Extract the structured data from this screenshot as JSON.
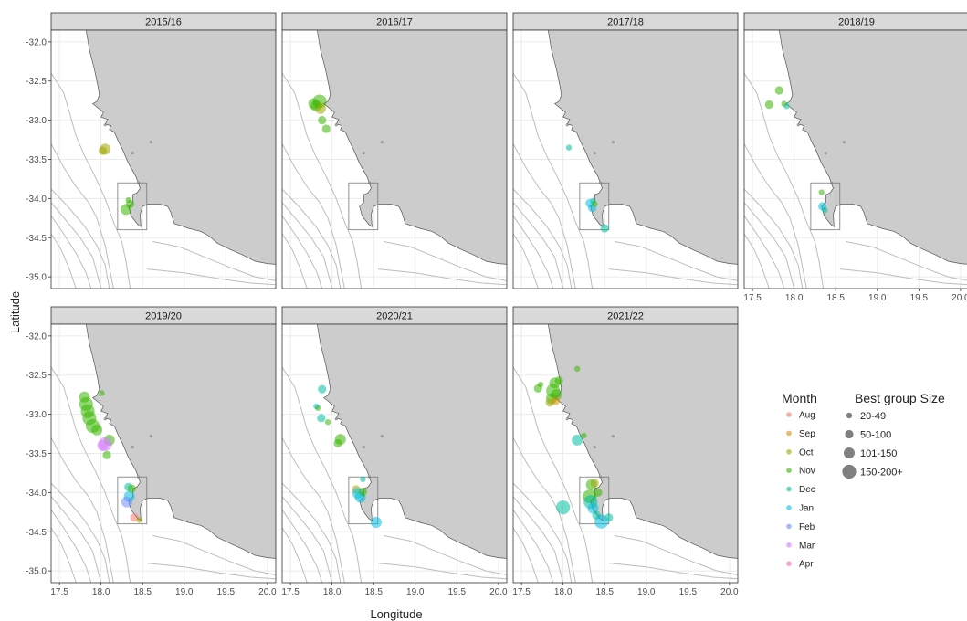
{
  "chart_data": {
    "type": "scatter",
    "xlabel": "Longitude",
    "ylabel": "Latitude",
    "xlim": [
      17.4,
      20.1
    ],
    "ylim": [
      -35.15,
      -31.85
    ],
    "x_ticks": [
      17.5,
      18.0,
      18.5,
      19.0,
      19.5,
      20.0
    ],
    "x_tick_labels": [
      "17.5",
      "18.0",
      "18.5",
      "19.0",
      "19.5",
      "20.0"
    ],
    "y_ticks": [
      -32.0,
      -32.5,
      -33.0,
      -33.5,
      -34.0,
      -34.5,
      -35.0
    ],
    "y_tick_labels": [
      "-32.0",
      "-32.5",
      "-33.0",
      "-33.5",
      "-34.0",
      "-34.5",
      "-35.0"
    ],
    "grid": true,
    "colors": {
      "Aug": "#F8766D",
      "Sep": "#D89000",
      "Oct": "#A3A500",
      "Nov": "#39B600",
      "Dec": "#00BFA0",
      "Jan": "#00BFE0",
      "Feb": "#6B8CFF",
      "Mar": "#D77CFF",
      "Apr": "#F669B7",
      "land": "#cccccc",
      "strip": "#d9d9d9",
      "contour": "#bdbdbd"
    },
    "panels": [
      {
        "title": "2015/16",
        "points": [
          {
            "lon": 18.05,
            "lat": -33.37,
            "month": "Oct",
            "size": 3
          },
          {
            "lon": 18.02,
            "lat": -33.39,
            "month": "Oct",
            "size": 2
          },
          {
            "lon": 18.33,
            "lat": -34.02,
            "month": "Nov",
            "size": 1
          },
          {
            "lon": 18.3,
            "lat": -34.14,
            "month": "Nov",
            "size": 3
          },
          {
            "lon": 18.35,
            "lat": -34.07,
            "month": "Nov",
            "size": 2
          }
        ]
      },
      {
        "title": "2016/17",
        "points": [
          {
            "lon": 17.85,
            "lat": -32.76,
            "month": "Nov",
            "size": 4
          },
          {
            "lon": 17.81,
            "lat": -32.82,
            "month": "Nov",
            "size": 3
          },
          {
            "lon": 17.86,
            "lat": -32.85,
            "month": "Oct",
            "size": 3
          },
          {
            "lon": 17.78,
            "lat": -32.79,
            "month": "Nov",
            "size": 3
          },
          {
            "lon": 17.88,
            "lat": -33.0,
            "month": "Nov",
            "size": 2
          },
          {
            "lon": 17.93,
            "lat": -33.11,
            "month": "Nov",
            "size": 2
          }
        ]
      },
      {
        "title": "2017/18",
        "points": [
          {
            "lon": 18.07,
            "lat": -33.35,
            "month": "Dec",
            "size": 1
          },
          {
            "lon": 18.32,
            "lat": -34.06,
            "month": "Jan",
            "size": 2
          },
          {
            "lon": 18.35,
            "lat": -34.12,
            "month": "Jan",
            "size": 2
          },
          {
            "lon": 18.36,
            "lat": -34.03,
            "month": "Dec",
            "size": 1
          },
          {
            "lon": 18.38,
            "lat": -34.07,
            "month": "Nov",
            "size": 1
          },
          {
            "lon": 18.5,
            "lat": -34.38,
            "month": "Dec",
            "size": 2
          }
        ]
      },
      {
        "title": "2018/19",
        "points": [
          {
            "lon": 17.82,
            "lat": -32.62,
            "month": "Nov",
            "size": 2
          },
          {
            "lon": 17.7,
            "lat": -32.8,
            "month": "Nov",
            "size": 2
          },
          {
            "lon": 17.88,
            "lat": -32.79,
            "month": "Nov",
            "size": 1
          },
          {
            "lon": 17.91,
            "lat": -32.82,
            "month": "Dec",
            "size": 1
          },
          {
            "lon": 18.33,
            "lat": -33.92,
            "month": "Nov",
            "size": 1
          },
          {
            "lon": 18.34,
            "lat": -34.1,
            "month": "Jan",
            "size": 2
          },
          {
            "lon": 18.37,
            "lat": -34.15,
            "month": "Dec",
            "size": 1
          }
        ]
      },
      {
        "title": "2019/20",
        "points": [
          {
            "lon": 17.82,
            "lat": -32.87,
            "month": "Nov",
            "size": 4
          },
          {
            "lon": 17.84,
            "lat": -32.96,
            "month": "Nov",
            "size": 4
          },
          {
            "lon": 17.86,
            "lat": -33.05,
            "month": "Nov",
            "size": 4
          },
          {
            "lon": 17.9,
            "lat": -33.15,
            "month": "Nov",
            "size": 4
          },
          {
            "lon": 17.8,
            "lat": -32.78,
            "month": "Nov",
            "size": 3
          },
          {
            "lon": 18.01,
            "lat": -32.73,
            "month": "Nov",
            "size": 1
          },
          {
            "lon": 17.95,
            "lat": -33.2,
            "month": "Nov",
            "size": 3
          },
          {
            "lon": 18.1,
            "lat": -33.33,
            "month": "Nov",
            "size": 3
          },
          {
            "lon": 18.05,
            "lat": -33.38,
            "month": "Mar",
            "size": 4
          },
          {
            "lon": 18.02,
            "lat": -33.4,
            "month": "Mar",
            "size": 3
          },
          {
            "lon": 18.07,
            "lat": -33.52,
            "month": "Nov",
            "size": 2
          },
          {
            "lon": 18.33,
            "lat": -33.93,
            "month": "Dec",
            "size": 2
          },
          {
            "lon": 18.37,
            "lat": -33.95,
            "month": "Nov",
            "size": 2
          },
          {
            "lon": 18.34,
            "lat": -34.05,
            "month": "Jan",
            "size": 3
          },
          {
            "lon": 18.31,
            "lat": -34.12,
            "month": "Feb",
            "size": 3
          },
          {
            "lon": 18.4,
            "lat": -34.32,
            "month": "Aug",
            "size": 2
          },
          {
            "lon": 18.46,
            "lat": -34.35,
            "month": "Oct",
            "size": 1
          }
        ]
      },
      {
        "title": "2020/21",
        "points": [
          {
            "lon": 17.88,
            "lat": -32.68,
            "month": "Dec",
            "size": 2
          },
          {
            "lon": 17.81,
            "lat": -32.9,
            "month": "Jan",
            "size": 1
          },
          {
            "lon": 17.83,
            "lat": -32.92,
            "month": "Nov",
            "size": 1
          },
          {
            "lon": 17.87,
            "lat": -33.05,
            "month": "Dec",
            "size": 2
          },
          {
            "lon": 17.95,
            "lat": -33.1,
            "month": "Nov",
            "size": 1
          },
          {
            "lon": 18.1,
            "lat": -33.32,
            "month": "Nov",
            "size": 3
          },
          {
            "lon": 18.07,
            "lat": -33.37,
            "month": "Nov",
            "size": 2
          },
          {
            "lon": 18.37,
            "lat": -33.83,
            "month": "Dec",
            "size": 1
          },
          {
            "lon": 18.29,
            "lat": -33.96,
            "month": "Oct",
            "size": 2
          },
          {
            "lon": 18.31,
            "lat": -34.01,
            "month": "Jan",
            "size": 3
          },
          {
            "lon": 18.34,
            "lat": -34.06,
            "month": "Jan",
            "size": 3
          },
          {
            "lon": 18.37,
            "lat": -33.99,
            "month": "Nov",
            "size": 2
          },
          {
            "lon": 18.53,
            "lat": -34.38,
            "month": "Jan",
            "size": 3
          }
        ]
      },
      {
        "title": "2021/22",
        "points": [
          {
            "lon": 17.7,
            "lat": -32.67,
            "month": "Nov",
            "size": 2
          },
          {
            "lon": 17.73,
            "lat": -32.62,
            "month": "Nov",
            "size": 1
          },
          {
            "lon": 17.9,
            "lat": -32.6,
            "month": "Nov",
            "size": 3
          },
          {
            "lon": 17.95,
            "lat": -32.57,
            "month": "Nov",
            "size": 2
          },
          {
            "lon": 17.88,
            "lat": -32.7,
            "month": "Nov",
            "size": 4
          },
          {
            "lon": 17.92,
            "lat": -32.75,
            "month": "Nov",
            "size": 3
          },
          {
            "lon": 17.86,
            "lat": -32.8,
            "month": "Nov",
            "size": 3
          },
          {
            "lon": 17.84,
            "lat": -32.85,
            "month": "Oct",
            "size": 2
          },
          {
            "lon": 17.91,
            "lat": -32.83,
            "month": "Sep",
            "size": 2
          },
          {
            "lon": 18.17,
            "lat": -32.42,
            "month": "Nov",
            "size": 1
          },
          {
            "lon": 18.17,
            "lat": -33.33,
            "month": "Dec",
            "size": 3
          },
          {
            "lon": 18.25,
            "lat": -33.27,
            "month": "Nov",
            "size": 1
          },
          {
            "lon": 18.0,
            "lat": -34.19,
            "month": "Dec",
            "size": 4
          },
          {
            "lon": 18.34,
            "lat": -33.9,
            "month": "Nov",
            "size": 3
          },
          {
            "lon": 18.38,
            "lat": -33.88,
            "month": "Oct",
            "size": 2
          },
          {
            "lon": 18.32,
            "lat": -34.05,
            "month": "Nov",
            "size": 4
          },
          {
            "lon": 18.33,
            "lat": -34.12,
            "month": "Dec",
            "size": 4
          },
          {
            "lon": 18.36,
            "lat": -34.2,
            "month": "Jan",
            "size": 3
          },
          {
            "lon": 18.42,
            "lat": -34.0,
            "month": "Nov",
            "size": 2
          },
          {
            "lon": 18.46,
            "lat": -34.37,
            "month": "Jan",
            "size": 4
          },
          {
            "lon": 18.55,
            "lat": -34.32,
            "month": "Dec",
            "size": 2
          },
          {
            "lon": 18.4,
            "lat": -34.29,
            "month": "Dec",
            "size": 2
          }
        ]
      }
    ],
    "legend_month": {
      "title": "Month",
      "items": [
        "Aug",
        "Sep",
        "Oct",
        "Nov",
        "Dec",
        "Jan",
        "Feb",
        "Mar",
        "Apr"
      ]
    },
    "legend_size": {
      "title": "Best group Size",
      "items": [
        {
          "label": "20-49",
          "size": 1
        },
        {
          "label": "50-100",
          "size": 2
        },
        {
          "label": "101-150",
          "size": 3
        },
        {
          "label": "150-200+",
          "size": 4
        }
      ]
    }
  }
}
